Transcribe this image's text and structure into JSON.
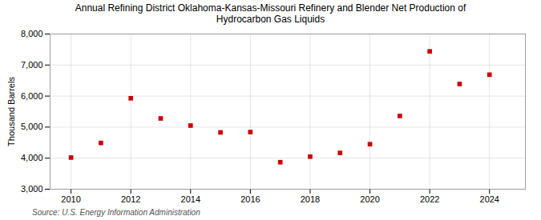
{
  "chart_data": {
    "type": "scatter",
    "title": "Annual Refining District Oklahoma-Kansas-Missouri Refinery and Blender Net Production of\nHydrocarbon Gas Liquids",
    "ylabel": "Thousand Barrels",
    "annotations": [
      "Source: U.S. Energy Information Administration"
    ],
    "x": [
      2010,
      2011,
      2012,
      2013,
      2014,
      2015,
      2016,
      2017,
      2018,
      2019,
      2020,
      2021,
      2022,
      2023,
      2024
    ],
    "values": [
      4020,
      4490,
      5930,
      5280,
      5050,
      4830,
      4840,
      3870,
      4050,
      4170,
      4450,
      5360,
      7440,
      6390,
      6690
    ],
    "color": "#cc0000",
    "marker": "square",
    "xlim": [
      2009.3,
      2025.2
    ],
    "xticks": [
      2010,
      2012,
      2014,
      2016,
      2018,
      2020,
      2022,
      2024
    ],
    "ylim": [
      3000,
      8000
    ],
    "yticks": [
      {
        "value": 3000,
        "label": "3,000"
      },
      {
        "value": 4000,
        "label": "4,000"
      },
      {
        "value": 5000,
        "label": "5,000"
      },
      {
        "value": 6000,
        "label": "6,000"
      },
      {
        "value": 7000,
        "label": "7,000"
      },
      {
        "value": 8000,
        "label": "8,000"
      }
    ],
    "grid": true
  }
}
